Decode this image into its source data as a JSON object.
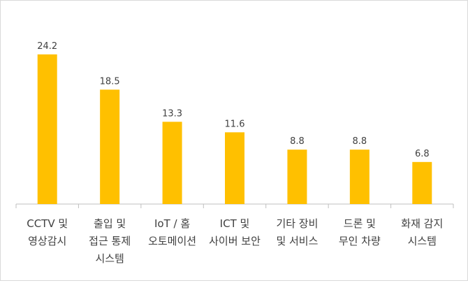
{
  "chart_data": {
    "type": "bar",
    "categories": [
      [
        "CCTV 및",
        "영상감시"
      ],
      [
        "출입 및",
        "접근 통제",
        "시스템"
      ],
      [
        "IoT / 홈",
        "오토메이션"
      ],
      [
        "ICT 및",
        "사이버 보안"
      ],
      [
        "기타 장비",
        "및 서비스"
      ],
      [
        "드론 및",
        "무인 차량"
      ],
      [
        "화재 감지",
        "시스템"
      ]
    ],
    "values": [
      24.2,
      18.5,
      13.3,
      11.6,
      8.8,
      8.8,
      6.8
    ],
    "value_labels": [
      "24.2",
      "18.5",
      "13.3",
      "11.6",
      "8.8",
      "8.8",
      "6.8"
    ],
    "ylim": [
      0,
      27
    ],
    "grid": false,
    "bar_color": "#FFC000",
    "axis_color": "#BFBFBF",
    "text_color": "#404040"
  }
}
